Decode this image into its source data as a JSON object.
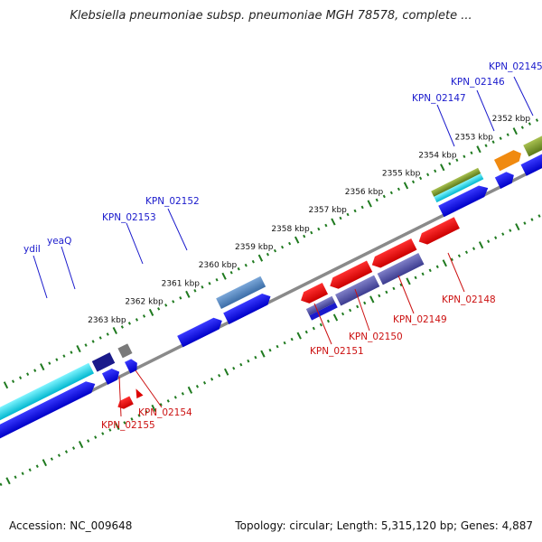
{
  "title": "Klebsiella pneumoniae subsp. pneumoniae MGH 78578, complete ...",
  "footer": {
    "accession": "Accession: NC_009648",
    "topology": "Topology: circular; Length: 5,315,120 bp; Genes: 4,887"
  },
  "colors": {
    "backbone": "#8a8a8a",
    "tick_forward": "#1f7a1f",
    "tick_reverse": "#1f7a1f",
    "label_forward": "#1a1acc",
    "label_reverse": "#cc1111"
  },
  "scale": {
    "unit": "kbp",
    "labels": [
      "2352 kbp",
      "2353 kbp",
      "2354 kbp",
      "2355 kbp",
      "2356 kbp",
      "2357 kbp",
      "2358 kbp",
      "2359 kbp",
      "2360 kbp",
      "2361 kbp",
      "2362 kbp",
      "2363 kbp"
    ]
  },
  "genes_forward": [
    "KPN_02145",
    "KPN_02146",
    "KPN_02147",
    "KPN_02152",
    "KPN_02153",
    "yeaQ",
    "ydiI"
  ],
  "genes_reverse": [
    "KPN_02148",
    "KPN_02149",
    "KPN_02150",
    "KPN_02151",
    "KPN_02154",
    "KPN_02155"
  ]
}
